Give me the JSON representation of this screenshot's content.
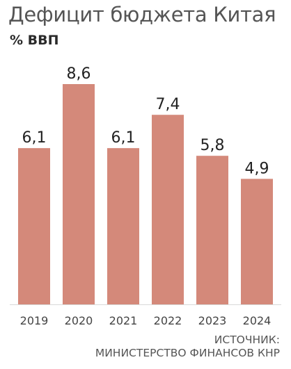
{
  "header": {
    "title": "Дефицит бюджета Китая",
    "subtitle": "% ВВП"
  },
  "footer": {
    "source_line1": "ИСТОЧНИК:",
    "source_line2": "МИНИСТЕРСТВО ФИНАНСОВ КНР"
  },
  "colors": {
    "bar": "#d4897a",
    "axis": "#d9d9d9"
  },
  "chart_data": {
    "type": "bar",
    "title": "Дефицит бюджета Китая",
    "ylabel": "% ВВП",
    "xlabel": "",
    "categories": [
      "2019",
      "2020",
      "2021",
      "2022",
      "2023",
      "2024"
    ],
    "values": [
      6.1,
      8.6,
      6.1,
      7.4,
      5.8,
      4.9
    ],
    "value_labels": [
      "6,1",
      "8,6",
      "6,1",
      "7,4",
      "5,8",
      "4,9"
    ],
    "ylim": [
      0,
      8.6
    ],
    "grid": false,
    "legend": "none"
  }
}
